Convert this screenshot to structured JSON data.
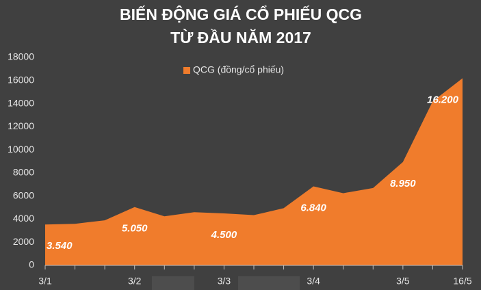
{
  "chart_data": {
    "type": "area",
    "title": "BIẾN ĐỘNG GIÁ CỔ PHIẾU QCG",
    "subtitle": "TỪ ĐẦU NĂM 2017",
    "categories": [
      "3/1",
      null,
      null,
      "3/2",
      null,
      null,
      "3/3",
      null,
      null,
      "3/4",
      null,
      null,
      "3/5",
      null,
      "16/5"
    ],
    "series": [
      {
        "name": "QCG (đồng/cổ phiếu)",
        "color": "#f07c2c",
        "values": [
          3540,
          3600,
          3900,
          5050,
          4250,
          4600,
          4500,
          4350,
          4950,
          6840,
          6250,
          6700,
          8950,
          14200,
          16200
        ],
        "value_labels": [
          "3.540",
          null,
          null,
          "5.050",
          null,
          null,
          "4.500",
          null,
          null,
          "6.840",
          null,
          null,
          "8.950",
          null,
          "16.200"
        ]
      }
    ],
    "ylim": [
      0,
      18000
    ],
    "yticks": [
      0,
      2000,
      4000,
      6000,
      8000,
      10000,
      12000,
      14000,
      16000,
      18000
    ],
    "grid": false,
    "legend": "top"
  }
}
